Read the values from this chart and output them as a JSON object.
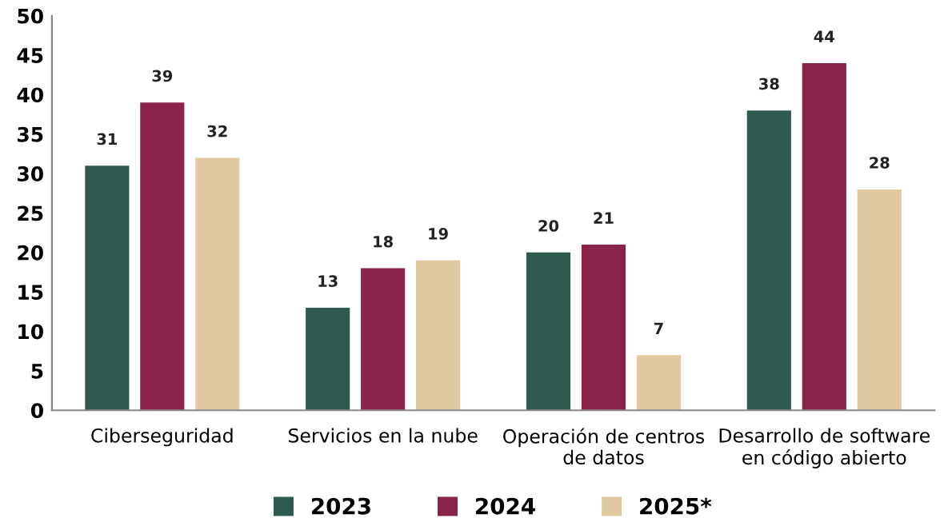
{
  "chart_data": {
    "type": "bar",
    "categories": [
      "Ciberseguridad",
      "Servicios en la nube",
      "Operación de centros\nde datos",
      "Desarrollo de software\nen código abierto"
    ],
    "series": [
      {
        "name": "2023",
        "color": "#2e5a50",
        "values": [
          31,
          13,
          20,
          38
        ]
      },
      {
        "name": "2024",
        "color": "#8a2349",
        "values": [
          39,
          18,
          21,
          44
        ]
      },
      {
        "name": "2025*",
        "color": "#e0c9a0",
        "values": [
          32,
          19,
          7,
          28
        ]
      }
    ],
    "ylim": [
      0,
      50
    ],
    "yticks": [
      0,
      5,
      10,
      15,
      20,
      25,
      30,
      35,
      40,
      45,
      50
    ],
    "grid": false,
    "legend": "bottom",
    "data_labels": true
  }
}
